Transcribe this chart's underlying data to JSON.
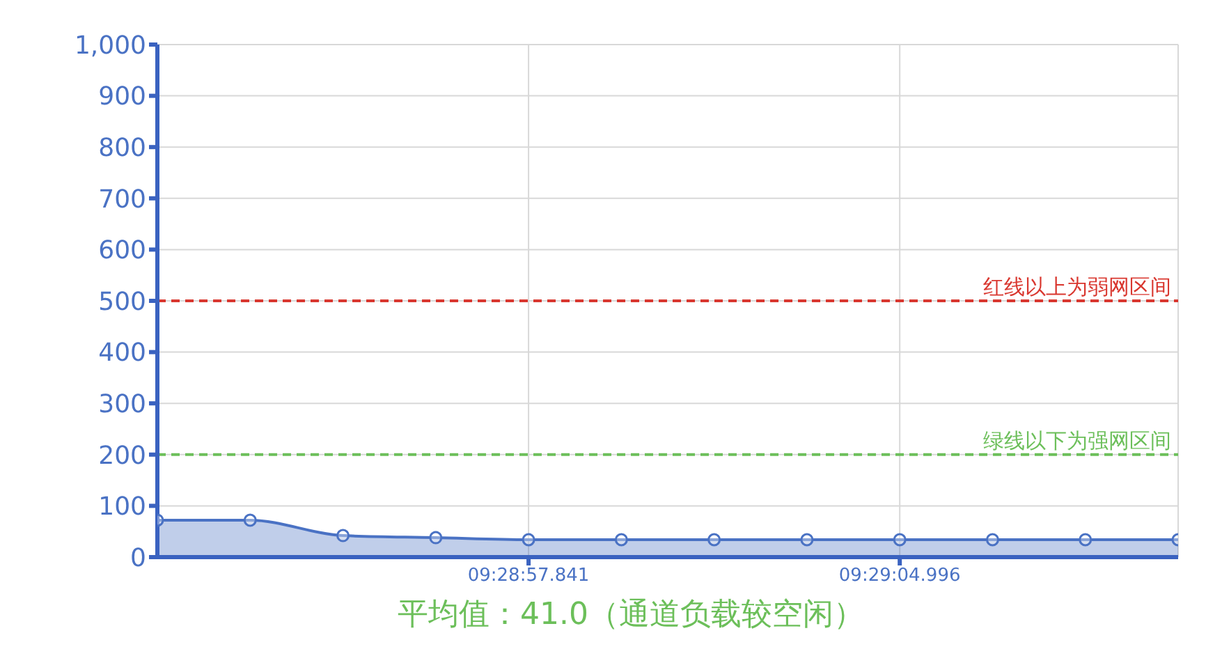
{
  "chart_data": {
    "type": "area",
    "categories": [
      null,
      null,
      null,
      null,
      "09:28:57.841",
      null,
      null,
      null,
      "09:29:04.996",
      null,
      null,
      null
    ],
    "series": [
      {
        "color": "#4a72c4",
        "values": [
          72,
          72,
          42,
          38,
          34,
          34,
          34,
          34,
          34,
          34,
          34,
          34
        ]
      }
    ],
    "ylim": [
      0,
      1000
    ],
    "yticks": [
      0,
      100,
      200,
      300,
      400,
      500,
      600,
      700,
      800,
      {
        "value": 900,
        "label": "900"
      },
      {
        "value": 1000,
        "label": "1,000"
      }
    ],
    "grid": true,
    "marker": "circle",
    "ref_lines": [
      {
        "axis": "y",
        "value": 500,
        "label": "红线以上为弱网区间",
        "color": "#d9372f",
        "line_style": "dashed"
      },
      {
        "axis": "y",
        "value": 200,
        "label": "绿线以下为强网区间",
        "color": "#6cbf5a",
        "line_style": "dashed"
      }
    ],
    "annotations": [
      "平均值：41.0（通道负载较空闲）"
    ]
  }
}
